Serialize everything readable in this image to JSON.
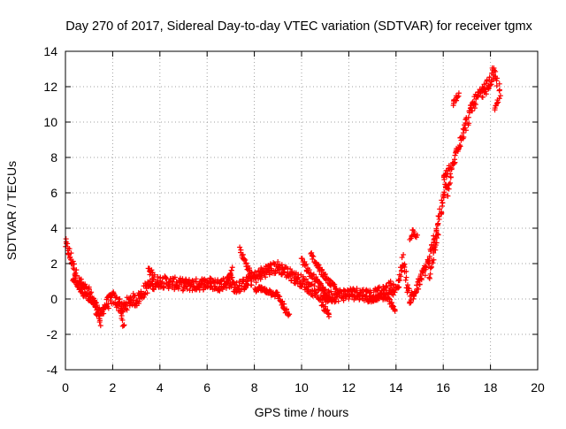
{
  "chart_data": {
    "type": "scatter",
    "title": "Day 270 of 2017, Sidereal Day-to-day VTEC variation (SDTVAR) for receiver tgmx",
    "xlabel": "GPS time / hours",
    "ylabel": "SDTVAR / TECUs",
    "xlim": [
      0,
      20
    ],
    "ylim": [
      -4,
      14
    ],
    "x_ticks": [
      "0",
      "2",
      "4",
      "6",
      "8",
      "10",
      "12",
      "14",
      "16",
      "18",
      "20"
    ],
    "y_ticks": [
      "-4",
      "-2",
      "0",
      "2",
      "4",
      "6",
      "8",
      "10",
      "12",
      "14"
    ],
    "grid": true,
    "marker": "+",
    "series": [
      {
        "name": "SDTVAR",
        "color": "#ff0000",
        "trend": [
          [
            0.0,
            3.1
          ],
          [
            0.1,
            2.8
          ],
          [
            0.2,
            2.4
          ],
          [
            0.3,
            2.0
          ],
          [
            0.4,
            1.6
          ],
          [
            0.5,
            1.2
          ],
          [
            0.6,
            0.9
          ],
          [
            0.8,
            0.6
          ],
          [
            1.0,
            0.3
          ],
          [
            1.2,
            -0.2
          ],
          [
            1.4,
            -0.8
          ],
          [
            1.5,
            -1.0
          ],
          [
            1.6,
            -0.5
          ],
          [
            1.8,
            -0.2
          ],
          [
            2.0,
            0.1
          ],
          [
            2.2,
            -0.2
          ],
          [
            2.4,
            -0.6
          ],
          [
            2.6,
            -0.3
          ],
          [
            2.8,
            0.0
          ],
          [
            3.0,
            -0.1
          ],
          [
            3.2,
            0.2
          ],
          [
            3.4,
            0.6
          ],
          [
            3.6,
            0.8
          ],
          [
            3.8,
            0.9
          ],
          [
            4.0,
            1.0
          ],
          [
            4.5,
            0.9
          ],
          [
            5.0,
            0.8
          ],
          [
            5.5,
            0.8
          ],
          [
            6.0,
            0.9
          ],
          [
            6.5,
            0.8
          ],
          [
            7.0,
            1.0
          ],
          [
            7.2,
            0.6
          ],
          [
            7.5,
            0.8
          ],
          [
            8.0,
            1.2
          ],
          [
            8.5,
            1.6
          ],
          [
            9.0,
            1.8
          ],
          [
            9.5,
            1.4
          ],
          [
            10.0,
            1.0
          ],
          [
            10.5,
            0.5
          ],
          [
            11.0,
            0.1
          ],
          [
            11.5,
            0.2
          ],
          [
            12.0,
            0.3
          ],
          [
            12.5,
            0.3
          ],
          [
            13.0,
            0.2
          ],
          [
            13.5,
            0.4
          ],
          [
            13.8,
            0.7
          ],
          [
            14.0,
            0.4
          ],
          [
            14.2,
            1.5
          ],
          [
            14.3,
            2.3
          ],
          [
            14.5,
            0.5
          ],
          [
            14.6,
            0.0
          ],
          [
            14.8,
            0.3
          ],
          [
            15.0,
            1.0
          ],
          [
            15.2,
            1.6
          ],
          [
            15.4,
            2.2
          ],
          [
            15.6,
            3.2
          ],
          [
            15.8,
            4.5
          ],
          [
            16.0,
            5.6
          ],
          [
            16.1,
            6.3
          ],
          [
            16.2,
            6.0
          ],
          [
            16.4,
            7.5
          ],
          [
            16.6,
            8.5
          ],
          [
            16.8,
            9.3
          ],
          [
            17.0,
            10.0
          ],
          [
            17.2,
            10.8
          ],
          [
            17.4,
            11.3
          ],
          [
            17.6,
            11.6
          ],
          [
            17.8,
            11.9
          ],
          [
            18.0,
            12.3
          ],
          [
            18.1,
            12.8
          ],
          [
            18.2,
            12.5
          ],
          [
            18.3,
            12.0
          ]
        ],
        "branches": [
          [
            [
              0.3,
              1.2
            ],
            [
              0.6,
              0.5
            ],
            [
              1.0,
              0.1
            ],
            [
              1.3,
              -0.3
            ],
            [
              1.5,
              -1.8
            ]
          ],
          [
            [
              2.3,
              0.0
            ],
            [
              2.4,
              -1.2
            ],
            [
              2.5,
              -1.7
            ]
          ],
          [
            [
              3.5,
              1.9
            ],
            [
              3.6,
              1.5
            ],
            [
              3.8,
              1.2
            ]
          ],
          [
            [
              6.8,
              1.0
            ],
            [
              7.0,
              1.4
            ],
            [
              7.1,
              1.7
            ]
          ],
          [
            [
              7.4,
              2.8
            ],
            [
              7.5,
              2.4
            ],
            [
              7.7,
              1.8
            ],
            [
              7.9,
              1.3
            ]
          ],
          [
            [
              8.0,
              0.6
            ],
            [
              8.5,
              0.5
            ],
            [
              9.0,
              0.2
            ],
            [
              9.3,
              -0.6
            ],
            [
              9.5,
              -1.0
            ]
          ],
          [
            [
              10.0,
              2.2
            ],
            [
              10.3,
              1.5
            ],
            [
              10.8,
              0.8
            ],
            [
              11.2,
              0.0
            ]
          ],
          [
            [
              10.4,
              2.6
            ],
            [
              10.6,
              2.0
            ],
            [
              11.0,
              1.2
            ],
            [
              11.5,
              0.5
            ]
          ],
          [
            [
              10.8,
              -0.2
            ],
            [
              11.0,
              -0.6
            ],
            [
              11.2,
              -1.0
            ]
          ],
          [
            [
              12.8,
              -0.2
            ],
            [
              13.2,
              0.2
            ],
            [
              13.6,
              0.1
            ],
            [
              14.0,
              -0.8
            ]
          ],
          [
            [
              14.6,
              3.3
            ],
            [
              14.7,
              3.8
            ],
            [
              14.9,
              3.6
            ]
          ],
          [
            [
              15.4,
              1.2
            ],
            [
              15.6,
              2.5
            ],
            [
              15.8,
              3.8
            ]
          ],
          [
            [
              16.4,
              11.0
            ],
            [
              16.6,
              11.5
            ],
            [
              16.7,
              11.6
            ]
          ],
          [
            [
              16.0,
              6.8
            ],
            [
              16.2,
              7.2
            ],
            [
              16.3,
              7.6
            ]
          ],
          [
            [
              18.2,
              10.6
            ],
            [
              18.3,
              11.0
            ],
            [
              18.4,
              11.5
            ],
            [
              18.4,
              12.2
            ]
          ]
        ]
      }
    ]
  }
}
